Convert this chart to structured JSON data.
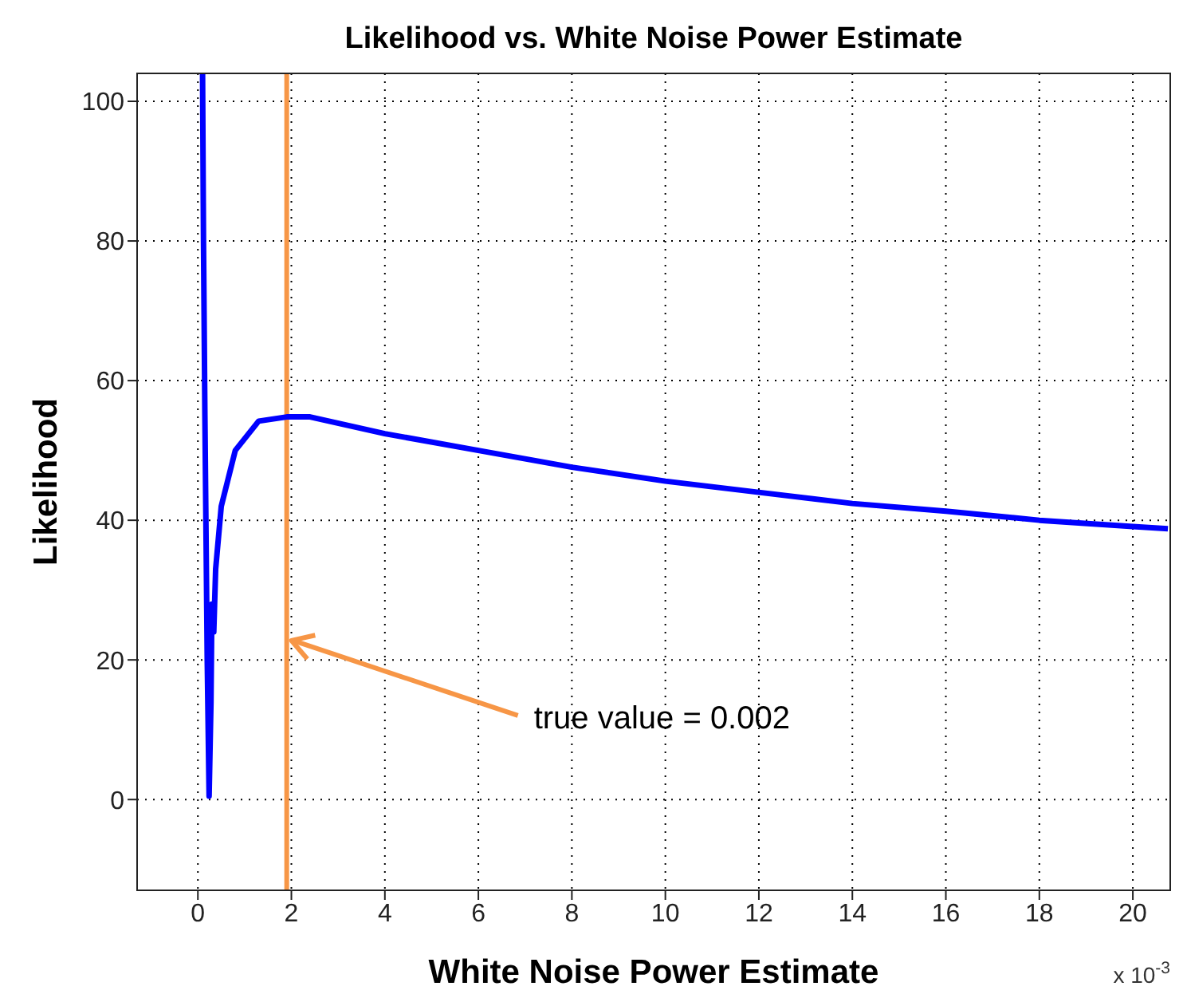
{
  "chart_data": {
    "type": "line",
    "title": "Likelihood vs. White Noise Power Estimate",
    "xlabel": "White Noise Power Estimate",
    "ylabel": "Likelihood",
    "x": [
      0.1,
      0.12,
      0.15,
      0.2,
      0.24,
      0.28,
      0.3,
      0.34,
      0.38,
      0.5,
      0.8,
      1.3,
      1.9,
      2.4,
      4,
      6,
      8,
      10,
      12,
      14,
      16,
      18,
      20,
      20.75
    ],
    "series": [
      {
        "color": "#0000ff",
        "values": [
          104,
          80,
          55,
          20,
          0.5,
          14,
          28,
          24,
          33,
          42,
          50,
          54.2,
          54.8,
          54.8,
          52.4,
          50,
          47.6,
          45.6,
          44,
          42.4,
          41.3,
          40,
          39.1,
          38.8
        ]
      }
    ],
    "xlim": [
      -1.3,
      20.8
    ],
    "ylim": [
      -13,
      104
    ],
    "xticks": [
      0,
      2,
      4,
      6,
      8,
      10,
      12,
      14,
      16,
      18,
      20
    ],
    "yticks": [
      0,
      20,
      40,
      60,
      80,
      100
    ],
    "grid": true,
    "ref_lines": [
      {
        "axis": "x",
        "value": 1.9,
        "color": "#f79646"
      }
    ],
    "annotations": [
      "x 10$^{-3}$",
      {
        "text": "true value = 0.002",
        "x": 1.9,
        "y": 23
      }
    ]
  }
}
